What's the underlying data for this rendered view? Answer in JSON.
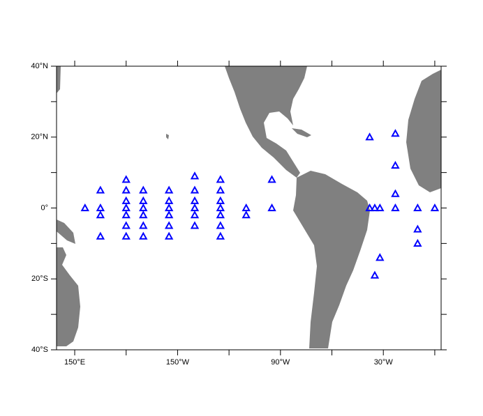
{
  "chart_data": {
    "type": "scatter",
    "xlim": [
      139.4,
      363.7
    ],
    "ylim": [
      -40,
      40
    ],
    "xticks": [
      {
        "value": 150,
        "label": "150°E"
      },
      {
        "value": 210,
        "label": "150°W"
      },
      {
        "value": 270,
        "label": "90°W"
      },
      {
        "value": 330,
        "label": "30°W"
      }
    ],
    "xticks_minor": [
      180,
      240,
      300,
      360
    ],
    "yticks": [
      {
        "value": -40,
        "label": "40°S"
      },
      {
        "value": -20,
        "label": "20°S"
      },
      {
        "value": 0,
        "label": "0°"
      },
      {
        "value": 20,
        "label": "20°N"
      },
      {
        "value": 40,
        "label": "40°N"
      }
    ],
    "yticks_minor": [
      -30,
      -10,
      10,
      30
    ],
    "color": "#0000ff",
    "x": [
      156,
      165,
      165,
      165,
      165,
      180,
      180,
      180,
      180,
      180,
      180,
      180,
      190,
      190,
      190,
      190,
      190,
      190,
      205,
      205,
      205,
      205,
      205,
      205,
      220,
      220,
      220,
      220,
      220,
      220,
      235,
      235,
      235,
      235,
      235,
      235,
      235,
      250,
      250,
      265,
      265,
      322,
      322,
      325,
      328,
      328,
      325,
      337,
      337,
      337,
      337,
      350,
      350,
      350,
      360
    ],
    "y": [
      0,
      5,
      0,
      -2,
      -8,
      8,
      5,
      2,
      0,
      -2,
      -5,
      -8,
      5,
      2,
      0,
      -2,
      -5,
      -8,
      5,
      2,
      0,
      -2,
      -5,
      -8,
      9,
      5,
      2,
      0,
      -2,
      -5,
      8,
      5,
      2,
      0,
      -2,
      -5,
      -8,
      0,
      -2,
      8,
      0,
      20,
      0,
      0,
      0,
      -14,
      -19,
      21,
      12,
      4,
      0,
      0,
      -6,
      -10,
      0
    ]
  }
}
